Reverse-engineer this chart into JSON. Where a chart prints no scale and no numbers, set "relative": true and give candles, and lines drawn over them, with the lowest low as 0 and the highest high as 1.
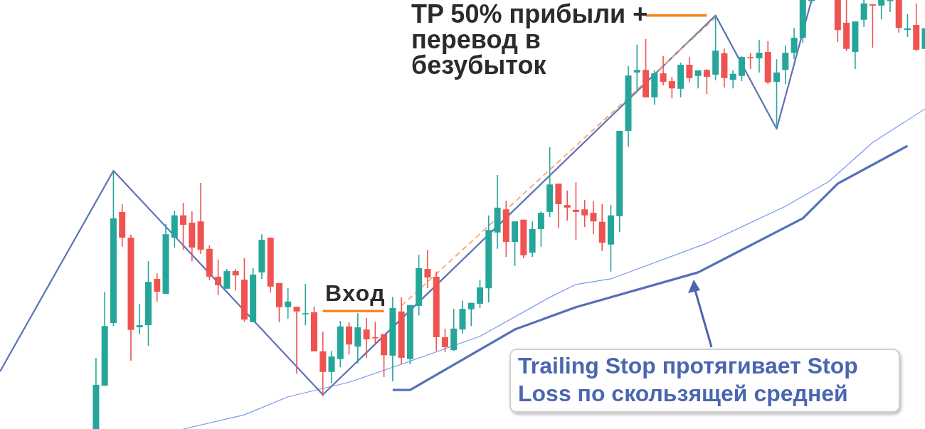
{
  "chart_data": {
    "type": "candlestick",
    "relative": true,
    "categories": [
      null,
      null,
      null,
      null,
      null,
      null,
      null,
      null,
      null,
      null,
      null,
      null,
      null,
      null,
      null,
      null,
      null,
      null,
      null,
      null,
      null,
      null,
      null,
      null,
      null,
      null,
      null,
      null,
      null,
      null,
      null,
      null,
      null,
      null,
      null,
      null,
      null,
      null,
      null,
      null,
      null,
      null,
      null,
      null,
      null,
      null,
      null,
      null,
      null,
      null,
      null,
      null,
      null,
      null,
      null,
      null,
      null,
      null,
      null,
      null,
      null,
      null,
      null,
      null,
      null,
      null,
      null,
      null,
      null,
      null,
      null,
      null,
      null,
      null,
      null,
      null,
      null,
      null,
      null,
      null,
      null,
      null,
      null,
      null,
      null,
      null,
      null,
      null,
      null,
      null,
      null,
      null,
      null,
      null,
      null,
      null,
      null,
      null,
      null,
      null,
      null,
      null,
      null,
      null,
      null,
      null,
      null
    ],
    "ohlc": [
      null,
      null,
      null,
      null,
      null,
      null,
      null,
      null,
      null,
      null,
      null,
      [
        0,
        0.166,
        0,
        0.103
      ],
      [
        0.101,
        0.32,
        0.101,
        0.24
      ],
      [
        0.247,
        0.602,
        0.24,
        0.491
      ],
      [
        0.506,
        0.524,
        0.425,
        0.446
      ],
      [
        0.446,
        0.453,
        0.159,
        0.231
      ],
      [
        0.237,
        0.292,
        0.221,
        0.242
      ],
      [
        0.242,
        0.391,
        0.194,
        0.343
      ],
      [
        0.35,
        0.363,
        0.297,
        0.32
      ],
      [
        0.315,
        0.478,
        0.315,
        0.454
      ],
      [
        0.446,
        0.509,
        0.423,
        0.498
      ],
      [
        0.498,
        0.527,
        0.418,
        0.476
      ],
      [
        0.481,
        0.507,
        0.391,
        0.423
      ],
      [
        0.484,
        0.574,
        0.408,
        0.418
      ],
      [
        0.42,
        0.428,
        0.347,
        0.355
      ],
      [
        0.355,
        0.395,
        0.312,
        0.335
      ],
      [
        0.327,
        0.373,
        0.327,
        0.368
      ],
      [
        0.368,
        0.373,
        0.323,
        0.358
      ],
      [
        0.348,
        0.398,
        0.25,
        0.255
      ],
      [
        0.249,
        0.375,
        0.249,
        0.36
      ],
      [
        0.365,
        0.454,
        0.35,
        0.441
      ],
      [
        0.446,
        0.446,
        0.318,
        0.332
      ],
      [
        0.34,
        0.34,
        0.249,
        0.284
      ],
      [
        0.284,
        0.328,
        0.257,
        0.297
      ],
      [
        0.285,
        0.285,
        0.129,
        0.274
      ],
      [
        0.269,
        0.338,
        0.242,
        0.27
      ],
      [
        0.272,
        0.285,
        0.181,
        0.181
      ],
      [
        0.181,
        0.227,
        0.076,
        0.133
      ],
      [
        0.133,
        0.182,
        0.106,
        0.169
      ],
      [
        0.163,
        0.252,
        0.144,
        0.239
      ],
      [
        0.239,
        0.249,
        0.174,
        0.197
      ],
      [
        0.192,
        0.27,
        0.153,
        0.237
      ],
      [
        0.232,
        0.259,
        0.166,
        0.209
      ],
      [
        0.214,
        0.25,
        0.197,
        0.212
      ],
      [
        0.221,
        0.221,
        0.121,
        0.172
      ],
      [
        0.171,
        0.308,
        0.111,
        0.282
      ],
      [
        0.274,
        0.307,
        0.151,
        0.166
      ],
      [
        0.163,
        0.289,
        0.151,
        0.289
      ],
      [
        0.287,
        0.406,
        0.265,
        0.375
      ],
      [
        0.373,
        0.418,
        0.328,
        0.353
      ],
      [
        0.355,
        0.367,
        0.182,
        0.214
      ],
      [
        0.214,
        0.234,
        0.179,
        0.191
      ],
      [
        0.184,
        0.28,
        0.182,
        0.234
      ],
      [
        0.232,
        0.299,
        0.222,
        0.28
      ],
      [
        0.279,
        0.294,
        0.24,
        0.294
      ],
      [
        0.292,
        0.348,
        0.282,
        0.33
      ],
      [
        0.328,
        0.498,
        0.295,
        0.464
      ],
      [
        0.458,
        0.592,
        0.42,
        0.516
      ],
      [
        0.512,
        0.532,
        0.401,
        0.436
      ],
      [
        0.436,
        0.484,
        0.38,
        0.484
      ],
      [
        0.488,
        0.488,
        0.398,
        0.405
      ],
      [
        0.411,
        0.484,
        0.401,
        0.466
      ],
      [
        0.466,
        0.507,
        0.425,
        0.504
      ],
      [
        0.506,
        0.657,
        0.494,
        0.57
      ],
      [
        0.572,
        0.572,
        0.468,
        0.524
      ],
      [
        0.522,
        0.556,
        0.486,
        0.516
      ],
      [
        0.511,
        0.575,
        0.441,
        0.506
      ],
      [
        0.512,
        0.534,
        0.471,
        0.498
      ],
      [
        0.504,
        0.531,
        0.454,
        0.484
      ],
      [
        0.483,
        0.524,
        0.415,
        0.434
      ],
      [
        0.43,
        0.522,
        0.367,
        0.498
      ],
      [
        0.496,
        0.695,
        0.459,
        0.695
      ],
      [
        0.695,
        0.846,
        0.658,
        0.824
      ],
      [
        0.831,
        0.896,
        0.786,
        0.837
      ],
      [
        0.837,
        0.909,
        0.773,
        0.773
      ],
      [
        0.773,
        0.836,
        0.756,
        0.829
      ],
      [
        0.829,
        0.869,
        0.801,
        0.809
      ],
      [
        0.811,
        0.821,
        0.771,
        0.794
      ],
      [
        0.793,
        0.854,
        0.773,
        0.849
      ],
      [
        0.849,
        0.867,
        0.808,
        0.818
      ],
      [
        0.823,
        0.836,
        0.794,
        0.836
      ],
      [
        0.837,
        0.839,
        0.781,
        0.821
      ],
      [
        0.826,
        0.962,
        0.813,
        0.882
      ],
      [
        0.876,
        0.887,
        0.796,
        0.818
      ],
      [
        0.814,
        0.836,
        0.794,
        0.828
      ],
      [
        0.823,
        0.869,
        0.811,
        0.867
      ],
      [
        0.867,
        0.876,
        0.839,
        0.866
      ],
      [
        0.864,
        0.907,
        0.831,
        0.877
      ],
      [
        0.879,
        0.904,
        0.804,
        0.808
      ],
      [
        0.809,
        0.862,
        0.698,
        0.831
      ],
      [
        0.837,
        0.894,
        0.804,
        0.877
      ],
      [
        0.877,
        0.935,
        0.862,
        0.912
      ],
      [
        0.912,
        1,
        0.9,
        1
      ],
      [
        1,
        1,
        0.992,
        1
      ],
      null,
      null,
      [
        1,
        1,
        0.902,
        0.93
      ],
      [
        0.947,
        1,
        0.881,
        0.886
      ],
      [
        0.879,
        0.95,
        0.839,
        0.95
      ],
      [
        0.954,
        1,
        0.937,
        0.992
      ],
      [
        0.99,
        0.99,
        0.889,
        0.987
      ],
      [
        0.987,
        1,
        0.955,
        1
      ],
      [
        1,
        1,
        0.972,
        1
      ],
      [
        1,
        1,
        0.924,
        0.935
      ],
      [
        0.93,
        0.967,
        0.914,
        0.934
      ],
      [
        0.942,
        0.992,
        0.881,
        0.884
      ],
      [
        0.886,
        0.934,
        0.886,
        0.934
      ]
    ],
    "colors": [
      null,
      null,
      null,
      null,
      null,
      null,
      null,
      null,
      null,
      null,
      null,
      "#26a69a",
      "#26a69a",
      "#26a69a",
      "#ef5350",
      "#ef5350",
      "#26a69a",
      "#26a69a",
      "#ef5350",
      "#26a69a",
      "#26a69a",
      "#ef5350",
      "#ef5350",
      "#ef5350",
      "#ef5350",
      "#ef5350",
      "#26a69a",
      "#ef5350",
      "#ef5350",
      "#26a69a",
      "#26a69a",
      "#ef5350",
      "#ef5350",
      "#26a69a",
      "#ef5350",
      "#26a69a",
      "#ef5350",
      "#ef5350",
      "#26a69a",
      "#26a69a",
      "#ef5350",
      "#26a69a",
      "#ef5350",
      "#ef5350",
      "#ef5350",
      "#26a69a",
      "#ef5350",
      "#26a69a",
      "#26a69a",
      "#ef5350",
      "#ef5350",
      "#ef5350",
      "#26a69a",
      "#26a69a",
      "#26a69a",
      "#26a69a",
      "#26a69a",
      "#26a69a",
      "#ef5350",
      "#26a69a",
      "#ef5350",
      "#26a69a",
      "#26a69a",
      "#26a69a",
      "#ef5350",
      "#ef5350",
      "#ef5350",
      "#ef5350",
      "#ef5350",
      "#ef5350",
      "#26a69a",
      "#26a69a",
      "#26a69a",
      "#26a69a",
      "#ef5350",
      "#26a69a",
      "#ef5350",
      "#ef5350",
      "#26a69a",
      "#ef5350",
      "#26a69a",
      "#ef5350",
      "#26a69a",
      "#ef5350",
      "#26a69a",
      "#26a69a",
      "#ef5350",
      "#26a69a",
      "#ef5350",
      "#26a69a",
      "#26a69a",
      "#26a69a",
      "#26a69a",
      "#26a69a",
      null,
      null,
      "#ef5350",
      "#ef5350",
      "#26a69a",
      "#26a69a",
      "#ef5350",
      "#26a69a",
      "#26a69a",
      "#ef5350",
      "#26a69a",
      "#ef5350",
      "#26a69a"
    ],
    "series": [
      {
        "type": "line",
        "color": "#7b96f2",
        "values": [
          null,
          null,
          null,
          null,
          null,
          null,
          null,
          null,
          null,
          null,
          null,
          null,
          null,
          null,
          null,
          null,
          null,
          null,
          null,
          null,
          null,
          0,
          null,
          null,
          null,
          null,
          null,
          null,
          0.033,
          null,
          null,
          null,
          null,
          0.075,
          null,
          null,
          null,
          null,
          null,
          null,
          0.109,
          null,
          null,
          null,
          null,
          null,
          0.151,
          null,
          null,
          null,
          null,
          null,
          null,
          null,
          null,
          0.216,
          null,
          null,
          null,
          null,
          null,
          null,
          null,
          0.307,
          null,
          null,
          0.337,
          null,
          null,
          null,
          0.35,
          null,
          null,
          null,
          null,
          null,
          null,
          null,
          null,
          null,
          null,
          0.433,
          null,
          null,
          null,
          null,
          null,
          null,
          null,
          null,
          0.519,
          null,
          null,
          null,
          null,
          0.577,
          null,
          null,
          null,
          null,
          0.668,
          null,
          null,
          null,
          null,
          null,
          0.746
        ]
      },
      {
        "type": "line",
        "color": "#5b73b8",
        "values": [
          0.134,
          null,
          null,
          null,
          null,
          null,
          null,
          null,
          null,
          null,
          null,
          null,
          null,
          0.602,
          null,
          null,
          null,
          null,
          null,
          null,
          null,
          null,
          null,
          null,
          null,
          null,
          null,
          null,
          null,
          null,
          null,
          null,
          null,
          null,
          null,
          null,
          null,
          0.08,
          null,
          null,
          null,
          null,
          null,
          null,
          null,
          null,
          null,
          null,
          null,
          null,
          null,
          null,
          null,
          null,
          null,
          null,
          null,
          null,
          null,
          null,
          null,
          null,
          null,
          null,
          null,
          null,
          null,
          null,
          null,
          null,
          null,
          null,
          null,
          null,
          null,
          null,
          null,
          null,
          null,
          null,
          null,
          null,
          0.964,
          null,
          null,
          null,
          null,
          null,
          null,
          0.7,
          null,
          null,
          null,
          1,
          null,
          null,
          null,
          null,
          null,
          null,
          null,
          null,
          null,
          null,
          null,
          null,
          null
        ]
      },
      {
        "type": "line",
        "color": "#5470b8",
        "values": [
          null,
          null,
          null,
          null,
          null,
          null,
          null,
          null,
          null,
          null,
          null,
          null,
          null,
          null,
          null,
          null,
          null,
          null,
          null,
          null,
          null,
          null,
          null,
          null,
          null,
          null,
          null,
          null,
          null,
          null,
          null,
          null,
          null,
          null,
          null,
          null,
          null,
          null,
          null,
          null,
          null,
          null,
          null,
          null,
          null,
          0.091,
          null,
          0.091,
          null,
          null,
          null,
          null,
          null,
          null,
          null,
          null,
          null,
          null,
          null,
          0.232,
          null,
          null,
          null,
          null,
          null,
          null,
          0.284,
          null,
          null,
          null,
          null,
          null,
          null,
          null,
          null,
          null,
          null,
          null,
          null,
          null,
          0.365,
          null,
          null,
          null,
          null,
          null,
          null,
          null,
          null,
          null,
          null,
          null,
          0.491,
          null,
          null,
          null,
          0.572,
          null,
          null,
          null,
          null,
          null,
          null,
          null,
          0.66,
          null,
          null
        ]
      },
      {
        "type": "line",
        "color": "#f9a66c",
        "line_style": "dashed",
        "values": [
          null,
          null,
          null,
          null,
          null,
          null,
          null,
          null,
          null,
          null,
          null,
          null,
          null,
          null,
          null,
          null,
          null,
          null,
          null,
          null,
          null,
          null,
          null,
          null,
          null,
          null,
          null,
          null,
          null,
          null,
          null,
          null,
          null,
          null,
          null,
          null,
          null,
          null,
          null,
          null,
          null,
          null,
          null,
          null,
          null,
          null,
          0.287,
          null,
          null,
          null,
          null,
          null,
          null,
          null,
          null,
          null,
          null,
          null,
          null,
          null,
          null,
          null,
          null,
          null,
          null,
          null,
          null,
          null,
          null,
          null,
          null,
          null,
          null,
          null,
          null,
          null,
          null,
          null,
          null,
          null,
          null,
          null,
          0.959,
          null,
          null,
          null,
          null,
          null,
          null,
          null,
          null,
          null,
          null,
          null,
          null,
          null,
          null,
          null,
          null,
          null,
          null,
          null,
          null,
          null,
          null,
          null,
          null
        ]
      },
      {
        "type": "line",
        "color": "#f7861e",
        "values": [
          null,
          null,
          null,
          null,
          null,
          null,
          null,
          null,
          null,
          null,
          null,
          null,
          null,
          null,
          null,
          null,
          null,
          null,
          null,
          null,
          null,
          null,
          null,
          null,
          null,
          null,
          null,
          null,
          null,
          null,
          null,
          null,
          null,
          null,
          null,
          null,
          null,
          0.275,
          null,
          null,
          null,
          null,
          null,
          null,
          0.275,
          null,
          null,
          null,
          null,
          null,
          null,
          null,
          null,
          null,
          null,
          null,
          null,
          null,
          null,
          null,
          null,
          null,
          null,
          null,
          null,
          null,
          null,
          null,
          null,
          null,
          null,
          null,
          null,
          null,
          null,
          null,
          null,
          null,
          null,
          null,
          null,
          null,
          null,
          null,
          null,
          null,
          null,
          null,
          null,
          null,
          null,
          null,
          null,
          null,
          null,
          null,
          null,
          null,
          null,
          null,
          null,
          null,
          null,
          null,
          null,
          null,
          null
        ]
      },
      {
        "type": "line",
        "color": "#f7861e",
        "values": [
          null,
          null,
          null,
          null,
          null,
          null,
          null,
          null,
          null,
          null,
          null,
          null,
          null,
          null,
          null,
          null,
          null,
          null,
          null,
          null,
          null,
          null,
          null,
          null,
          null,
          null,
          null,
          null,
          null,
          null,
          null,
          null,
          null,
          null,
          null,
          null,
          null,
          null,
          null,
          null,
          null,
          null,
          null,
          null,
          null,
          null,
          null,
          null,
          null,
          null,
          null,
          null,
          null,
          null,
          null,
          null,
          null,
          null,
          null,
          null,
          null,
          null,
          null,
          null,
          null,
          null,
          null,
          null,
          null,
          null,
          null,
          null,
          null,
          null,
          0.964,
          null,
          null,
          null,
          null,
          null,
          null,
          0.964,
          null,
          null,
          null,
          null,
          null,
          null,
          null,
          null,
          null,
          null,
          null,
          null,
          null,
          null,
          null,
          null,
          null,
          null,
          null,
          null,
          null,
          null,
          null,
          null,
          null
        ]
      }
    ],
    "annotations": [
      "Вход",
      "TP 50% прибыли + перевод в безубыток",
      "Trailing Stop протягивает Stop Loss по скользящей средней"
    ]
  }
}
